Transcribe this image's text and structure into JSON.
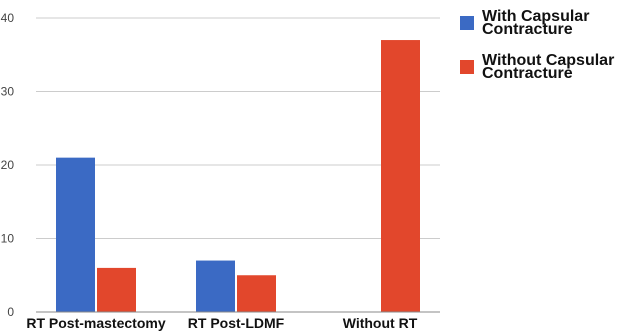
{
  "chart_data": {
    "type": "bar",
    "categories": [
      "RT Post-mastectomy",
      "RT Post-LDMF",
      "Without RT"
    ],
    "series": [
      {
        "name": "With Capsular Contracture",
        "values": [
          21,
          7,
          0
        ],
        "color": "#3b6ac4"
      },
      {
        "name": "Without Capsular Contracture",
        "values": [
          6,
          5,
          37
        ],
        "color": "#e2472c"
      }
    ],
    "ylim": [
      0,
      40
    ],
    "yticks": [
      0,
      10,
      20,
      30,
      40
    ],
    "grid": true,
    "legend_position": "top-right",
    "title": "",
    "xlabel": "",
    "ylabel": ""
  }
}
